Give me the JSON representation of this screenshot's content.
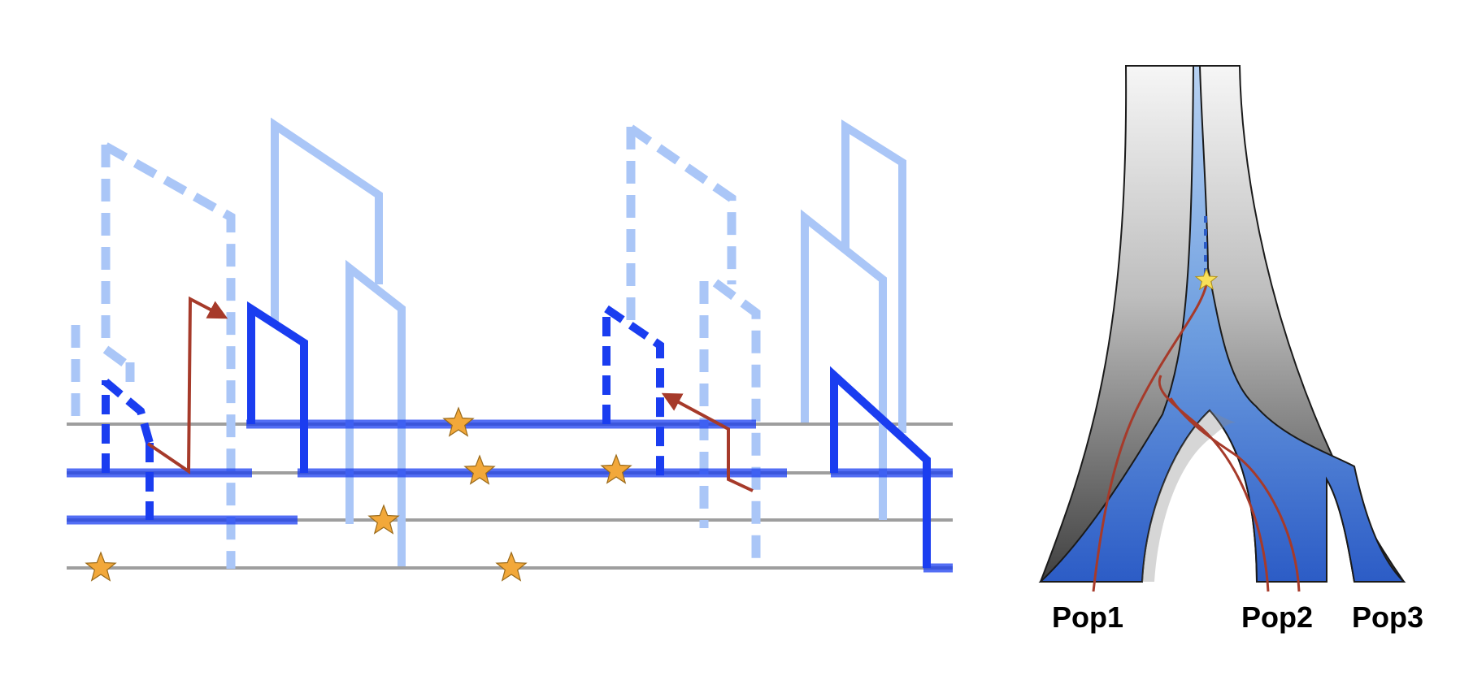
{
  "labels": {
    "pop1": "Pop1",
    "pop2": "Pop2",
    "pop3": "Pop3"
  },
  "colors": {
    "background": "#ffffff",
    "haplotype_line": "#9e9e9e",
    "ancestral_segment": "#1a3df0",
    "ancestral_segment_light": "#aac6f7",
    "recombination_arrow": "#a63a2a",
    "mutation_star": "#f2a83a",
    "mutation_star_stroke": "#9a6a1a",
    "tree_gradient_top": "#f4f4f4",
    "tree_gradient_bottom": "#4c4c4c",
    "pop_gradient_top": "#9ec0ec",
    "pop_gradient_bottom": "#2f5fc8",
    "lineage": "#a63a2a",
    "root_star": "#f8e05a"
  },
  "legend_marks": {
    "mutation": "star-icon",
    "recombination": "arrow-icon"
  }
}
